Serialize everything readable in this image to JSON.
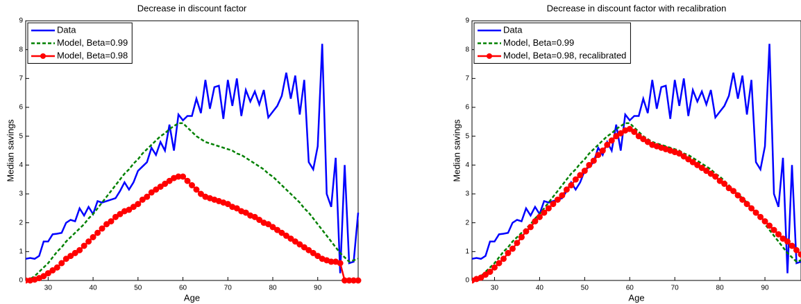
{
  "chart_data": [
    {
      "type": "line",
      "title": "Decrease in discount factor",
      "x_label": "Age",
      "y_label": "Median savings",
      "xlim": [
        25,
        99
      ],
      "ylim": [
        0,
        9
      ],
      "xticks": [
        30,
        40,
        50,
        60,
        70,
        80,
        90
      ],
      "yticks": [
        0,
        1,
        2,
        3,
        4,
        5,
        6,
        7,
        8,
        9
      ],
      "grid": false,
      "legend": "upper left",
      "x": [
        25,
        26,
        27,
        28,
        29,
        30,
        31,
        32,
        33,
        34,
        35,
        36,
        37,
        38,
        39,
        40,
        41,
        42,
        43,
        44,
        45,
        46,
        47,
        48,
        49,
        50,
        51,
        52,
        53,
        54,
        55,
        56,
        57,
        58,
        59,
        60,
        61,
        62,
        63,
        64,
        65,
        66,
        67,
        68,
        69,
        70,
        71,
        72,
        73,
        74,
        75,
        76,
        77,
        78,
        79,
        80,
        81,
        82,
        83,
        84,
        85,
        86,
        87,
        88,
        89,
        90,
        91,
        92,
        93,
        94,
        95,
        96,
        97,
        98,
        99
      ],
      "series": [
        {
          "name": "Data",
          "color": "#0000ff",
          "dash": false,
          "marker": false,
          "values": [
            0.75,
            0.78,
            0.75,
            0.85,
            1.35,
            1.35,
            1.6,
            1.62,
            1.65,
            2.0,
            2.1,
            2.05,
            2.5,
            2.25,
            2.55,
            2.3,
            2.75,
            2.7,
            2.75,
            2.8,
            2.85,
            3.1,
            3.4,
            3.15,
            3.4,
            3.8,
            3.95,
            4.1,
            4.6,
            4.35,
            4.8,
            4.5,
            5.4,
            4.5,
            5.75,
            5.55,
            5.7,
            5.7,
            6.3,
            5.8,
            6.95,
            5.95,
            6.7,
            6.75,
            5.6,
            6.95,
            6.05,
            7.0,
            5.7,
            6.6,
            6.2,
            6.55,
            6.1,
            6.6,
            5.65,
            5.85,
            6.05,
            6.4,
            7.2,
            6.3,
            7.1,
            5.75,
            6.95,
            4.1,
            3.85,
            4.65,
            8.2,
            3.0,
            2.55,
            4.25,
            0.25,
            4.0,
            0.6,
            0.65,
            2.35
          ]
        },
        {
          "name": "Model, Beta=0.99",
          "color": "#008000",
          "dash": true,
          "marker": false,
          "values": [
            0.0,
            0.05,
            0.15,
            0.3,
            0.45,
            0.6,
            0.8,
            1.0,
            1.15,
            1.35,
            1.5,
            1.65,
            1.8,
            1.95,
            2.15,
            2.3,
            2.5,
            2.7,
            2.9,
            3.1,
            3.3,
            3.5,
            3.7,
            3.85,
            4.05,
            4.2,
            4.4,
            4.55,
            4.7,
            4.85,
            5.0,
            5.1,
            5.25,
            5.35,
            5.45,
            5.45,
            5.3,
            5.15,
            5.0,
            4.9,
            4.8,
            4.75,
            4.7,
            4.65,
            4.6,
            4.55,
            4.5,
            4.4,
            4.35,
            4.25,
            4.15,
            4.05,
            3.95,
            3.85,
            3.7,
            3.6,
            3.45,
            3.3,
            3.15,
            3.0,
            2.85,
            2.7,
            2.5,
            2.35,
            2.15,
            1.95,
            1.75,
            1.55,
            1.35,
            1.15,
            0.95,
            0.8,
            0.65,
            0.7,
            0.75
          ]
        },
        {
          "name": "Model, Beta=0.98",
          "color": "#ff0000",
          "dash": false,
          "marker": true,
          "values": [
            0.0,
            0.0,
            0.03,
            0.08,
            0.15,
            0.25,
            0.35,
            0.45,
            0.6,
            0.75,
            0.85,
            0.95,
            1.05,
            1.2,
            1.35,
            1.5,
            1.65,
            1.8,
            1.95,
            2.05,
            2.2,
            2.3,
            2.4,
            2.45,
            2.55,
            2.65,
            2.8,
            2.9,
            3.05,
            3.15,
            3.25,
            3.35,
            3.45,
            3.55,
            3.6,
            3.6,
            3.45,
            3.3,
            3.15,
            3.0,
            2.9,
            2.85,
            2.8,
            2.75,
            2.7,
            2.65,
            2.55,
            2.5,
            2.4,
            2.35,
            2.25,
            2.2,
            2.1,
            2.0,
            1.95,
            1.85,
            1.75,
            1.65,
            1.55,
            1.45,
            1.35,
            1.25,
            1.15,
            1.05,
            0.95,
            0.85,
            0.75,
            0.7,
            0.65,
            0.65,
            0.6,
            0.0,
            0.0,
            0.0,
            0.0
          ]
        }
      ]
    },
    {
      "type": "line",
      "title": "Decrease in discount factor with recalibration",
      "x_label": "Age",
      "y_label": "Median savings",
      "xlim": [
        25,
        98
      ],
      "ylim": [
        0,
        9
      ],
      "xticks": [
        30,
        40,
        50,
        60,
        70,
        80,
        90
      ],
      "yticks": [
        0,
        1,
        2,
        3,
        4,
        5,
        6,
        7,
        8,
        9
      ],
      "grid": false,
      "legend": "upper left",
      "x": [
        25,
        26,
        27,
        28,
        29,
        30,
        31,
        32,
        33,
        34,
        35,
        36,
        37,
        38,
        39,
        40,
        41,
        42,
        43,
        44,
        45,
        46,
        47,
        48,
        49,
        50,
        51,
        52,
        53,
        54,
        55,
        56,
        57,
        58,
        59,
        60,
        61,
        62,
        63,
        64,
        65,
        66,
        67,
        68,
        69,
        70,
        71,
        72,
        73,
        74,
        75,
        76,
        77,
        78,
        79,
        80,
        81,
        82,
        83,
        84,
        85,
        86,
        87,
        88,
        89,
        90,
        91,
        92,
        93,
        94,
        95,
        96,
        97,
        98
      ],
      "series": [
        {
          "name": "Data",
          "color": "#0000ff",
          "dash": false,
          "marker": false,
          "values": [
            0.75,
            0.78,
            0.75,
            0.85,
            1.35,
            1.35,
            1.6,
            1.62,
            1.65,
            2.0,
            2.1,
            2.05,
            2.5,
            2.25,
            2.55,
            2.3,
            2.75,
            2.7,
            2.75,
            2.8,
            2.85,
            3.1,
            3.4,
            3.15,
            3.4,
            3.8,
            3.95,
            4.1,
            4.6,
            4.35,
            4.8,
            4.5,
            5.4,
            4.5,
            5.75,
            5.55,
            5.7,
            5.7,
            6.3,
            5.8,
            6.95,
            5.95,
            6.7,
            6.75,
            5.6,
            6.95,
            6.05,
            7.0,
            5.7,
            6.6,
            6.2,
            6.55,
            6.1,
            6.6,
            5.65,
            5.85,
            6.05,
            6.4,
            7.2,
            6.3,
            7.1,
            5.75,
            6.95,
            4.1,
            3.85,
            4.65,
            8.2,
            3.0,
            2.55,
            4.25,
            0.25,
            4.0,
            0.6,
            0.65
          ]
        },
        {
          "name": "Model, Beta=0.99",
          "color": "#008000",
          "dash": true,
          "marker": false,
          "values": [
            0.0,
            0.05,
            0.15,
            0.3,
            0.45,
            0.6,
            0.8,
            1.0,
            1.15,
            1.35,
            1.5,
            1.65,
            1.8,
            1.95,
            2.15,
            2.3,
            2.5,
            2.7,
            2.9,
            3.1,
            3.3,
            3.5,
            3.7,
            3.85,
            4.05,
            4.2,
            4.4,
            4.55,
            4.7,
            4.85,
            5.0,
            5.1,
            5.25,
            5.35,
            5.45,
            5.45,
            5.3,
            5.15,
            5.0,
            4.9,
            4.8,
            4.75,
            4.7,
            4.65,
            4.6,
            4.55,
            4.5,
            4.4,
            4.35,
            4.25,
            4.15,
            4.05,
            3.95,
            3.85,
            3.7,
            3.6,
            3.45,
            3.3,
            3.15,
            3.0,
            2.85,
            2.7,
            2.5,
            2.35,
            2.15,
            1.95,
            1.75,
            1.55,
            1.35,
            1.15,
            0.95,
            0.8,
            0.65,
            0.7
          ]
        },
        {
          "name": "Model, Beta=0.98, recalibrated",
          "color": "#ff0000",
          "dash": false,
          "marker": true,
          "values": [
            0.0,
            0.05,
            0.1,
            0.2,
            0.3,
            0.45,
            0.6,
            0.75,
            0.95,
            1.1,
            1.3,
            1.5,
            1.7,
            1.85,
            2.05,
            2.2,
            2.35,
            2.5,
            2.65,
            2.8,
            2.95,
            3.15,
            3.3,
            3.5,
            3.65,
            3.8,
            4.0,
            4.15,
            4.35,
            4.5,
            4.7,
            4.85,
            5.0,
            5.1,
            5.2,
            5.25,
            5.15,
            5.0,
            4.9,
            4.8,
            4.7,
            4.65,
            4.6,
            4.55,
            4.5,
            4.45,
            4.4,
            4.3,
            4.2,
            4.1,
            4.0,
            3.9,
            3.8,
            3.7,
            3.6,
            3.45,
            3.35,
            3.2,
            3.1,
            2.95,
            2.8,
            2.65,
            2.5,
            2.35,
            2.2,
            2.05,
            1.9,
            1.75,
            1.6,
            1.45,
            1.35,
            1.2,
            1.05,
            0.9
          ]
        }
      ]
    }
  ]
}
